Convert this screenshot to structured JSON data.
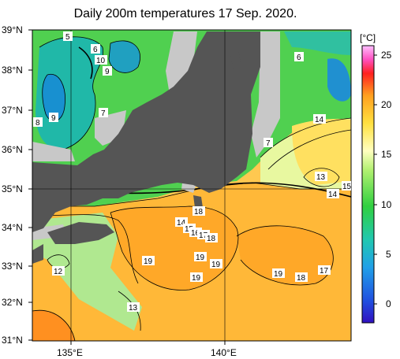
{
  "title": "Daily 200m temperatures 17 Sep. 2020.",
  "colorbar": {
    "unit": "[°C]",
    "ticks": [
      "25",
      "20",
      "15",
      "10",
      "5",
      "0"
    ],
    "range": [
      -2,
      26
    ]
  },
  "axes": {
    "lat_labels": [
      "39°N",
      "38°N",
      "37°N",
      "36°N",
      "35°N",
      "34°N",
      "33°N",
      "32°N",
      "31°N"
    ],
    "lon_labels": [
      "135°E",
      "140°E"
    ]
  },
  "contour_labels": [
    "5",
    "6",
    "10",
    "9",
    "6",
    "7",
    "9",
    "8",
    "7",
    "14",
    "13",
    "14",
    "15",
    "18",
    "14",
    "15",
    "16",
    "17",
    "18",
    "19",
    "19",
    "19",
    "19",
    "19",
    "18",
    "17",
    "12",
    "13"
  ],
  "colors": {
    "land": "#555555",
    "nodata": "#c8c8c8",
    "cold": "#1fb0a8",
    "green": "#55d455",
    "lightgreen": "#a8e890",
    "cream": "#ffffc0",
    "yellow": "#ffe060",
    "orange": "#ffb030"
  }
}
